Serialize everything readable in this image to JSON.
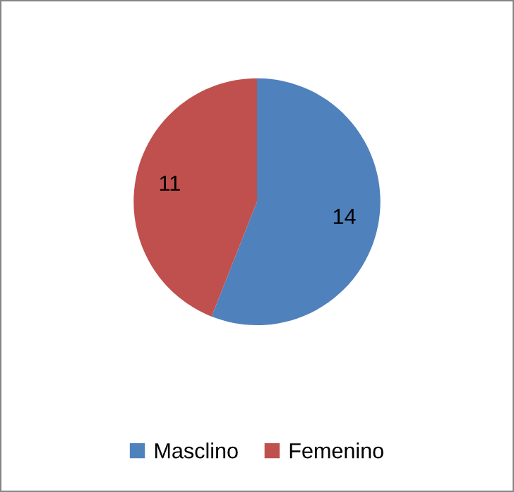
{
  "chart_data": {
    "type": "pie",
    "categories": [
      "Masclino",
      "Femenino"
    ],
    "values": [
      14,
      11
    ],
    "colors": [
      "#4f81bd",
      "#c0504d"
    ],
    "data_labels": true,
    "legend": "bottom"
  }
}
